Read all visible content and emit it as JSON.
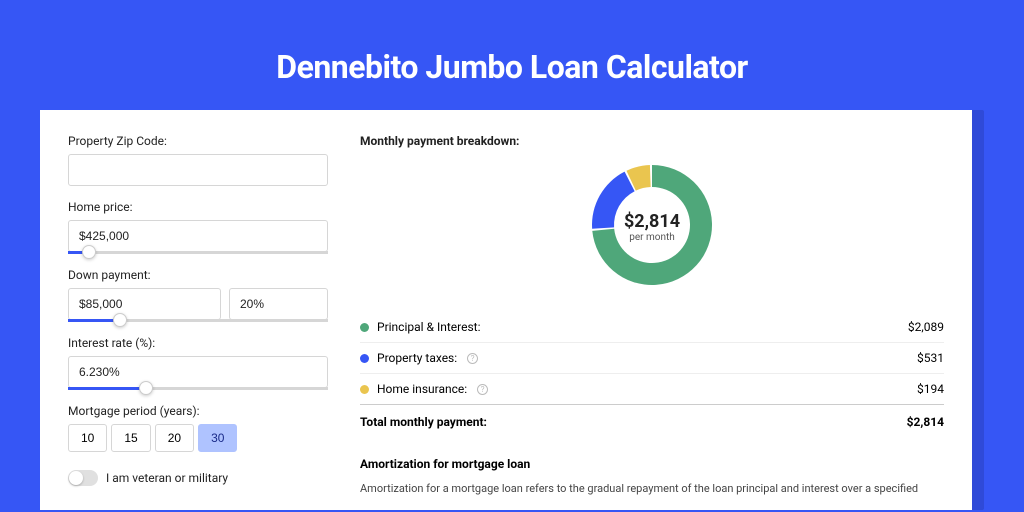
{
  "title": "Dennebito Jumbo Loan Calculator",
  "colors": {
    "page_bg": "#3656f5",
    "card_shadow": "#2f4ad8",
    "accent": "#3656f5",
    "period_active_bg": "#afc3ff"
  },
  "form": {
    "zip": {
      "label": "Property Zip Code:",
      "value": ""
    },
    "home_price": {
      "label": "Home price:",
      "value": "$425,000",
      "slider_pct": 8
    },
    "down_payment": {
      "label": "Down payment:",
      "value": "$85,000",
      "pct_value": "20%",
      "slider_pct": 20
    },
    "interest": {
      "label": "Interest rate (%):",
      "value": "6.230%",
      "slider_pct": 30
    },
    "period": {
      "label": "Mortgage period (years):",
      "options": [
        "10",
        "15",
        "20",
        "30"
      ],
      "selected": "30"
    },
    "veteran": {
      "label": "I am veteran or military",
      "checked": false
    }
  },
  "breakdown": {
    "title": "Monthly payment breakdown:",
    "donut": {
      "amount": "$2,814",
      "sub": "per month",
      "slices": [
        {
          "label": "Principal & Interest",
          "value": 2089,
          "color": "#4fa77a",
          "pct": 74
        },
        {
          "label": "Property taxes",
          "value": 531,
          "color": "#3656f5",
          "pct": 19
        },
        {
          "label": "Home insurance",
          "value": 194,
          "color": "#eac54f",
          "pct": 7
        }
      ],
      "inner_radius": 38,
      "outer_radius": 60
    },
    "legend": [
      {
        "label": "Principal & Interest:",
        "value": "$2,089",
        "color": "#4fa77a",
        "info": false
      },
      {
        "label": "Property taxes:",
        "value": "$531",
        "color": "#3656f5",
        "info": true
      },
      {
        "label": "Home insurance:",
        "value": "$194",
        "color": "#eac54f",
        "info": true
      }
    ],
    "total": {
      "label": "Total monthly payment:",
      "value": "$2,814"
    }
  },
  "amortization": {
    "title": "Amortization for mortgage loan",
    "text": "Amortization for a mortgage loan refers to the gradual repayment of the loan principal and interest over a specified"
  }
}
